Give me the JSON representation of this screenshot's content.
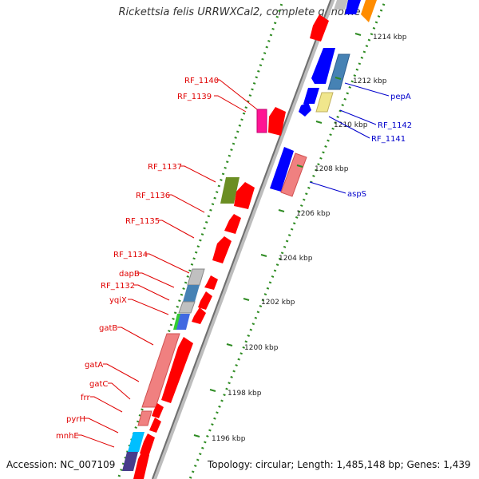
{
  "title": "Rickettsia felis URRWXCal2, complete genome",
  "accession": "Accession: NC_007109",
  "topology": "Topology: circular; Length: 1,485,148 bp; Genes: 1,439",
  "colors": {
    "backbone": "#8c8c8c",
    "tick_dots": "#2e8b22",
    "label_red": "#e00000",
    "label_blue": "#0000cc",
    "arrow_red": "#ff0000",
    "arrow_blue": "#0000ff"
  },
  "kbp_ticks": [
    "1196 kbp",
    "1198 kbp",
    "1200 kbp",
    "1202 kbp",
    "1204 kbp",
    "1206 kbp",
    "1208 kbp",
    "1210 kbp",
    "1212 kbp",
    "1214 kbp"
  ],
  "genes_minus_labels": [
    "RF_1140",
    "RF_1139",
    "RF_1137",
    "RF_1136",
    "RF_1135",
    "RF_1134",
    "dapB",
    "RF_1132",
    "yqiX",
    "gatB",
    "gatA",
    "gatC",
    "frr",
    "pyrH",
    "mnhE"
  ],
  "genes_plus_labels": [
    "pepA",
    "RF_1142",
    "RF_1141",
    "aspS"
  ]
}
